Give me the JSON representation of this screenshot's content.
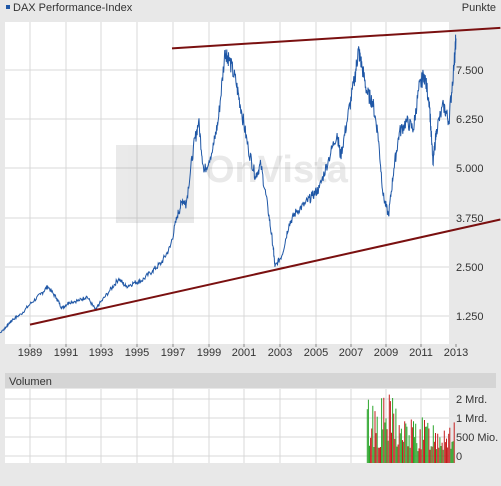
{
  "title": "DAX Performance-Index",
  "unit_label": "Punkte",
  "watermark": "OnVista",
  "volume_title": "Volumen",
  "colors": {
    "background": "#e8e8e8",
    "plot_bg": "#ffffff",
    "grid": "#d8d8d8",
    "price_line": "#1f57a6",
    "trend_line": "#7a1010",
    "vol_up": "#2aa52a",
    "vol_down": "#c41e1e",
    "legend_square": "#1f57a6"
  },
  "chart_data": [
    {
      "type": "line",
      "title": "DAX Performance-Index",
      "ylabel": "Punkte",
      "x_ticks": [
        "1989",
        "1991",
        "1993",
        "1995",
        "1997",
        "1999",
        "2001",
        "2003",
        "2005",
        "2007",
        "2009",
        "2011",
        "2013"
      ],
      "y_ticks": [
        "1.250",
        "2.500",
        "3.750",
        "5.000",
        "6.250",
        "7.500"
      ],
      "xlim": [
        1987.0,
        2013.0
      ],
      "ylim": [
        0,
        8900
      ],
      "grid": true,
      "series": [
        {
          "x": [
            1987.0,
            1987.5,
            1987.8,
            1988.0,
            1988.5,
            1989.0,
            1989.6,
            1990.0,
            1990.5,
            1990.8,
            1991.2,
            1991.8,
            1992.2,
            1992.7,
            1992.9,
            1993.5,
            1994.0,
            1994.4,
            1994.9,
            1995.3,
            1995.9,
            1996.4,
            1996.9,
            1997.3,
            1997.6,
            1997.8,
            1998.2,
            1998.5,
            1998.8,
            1999.3,
            1999.6,
            2000.0,
            2000.2,
            2000.6,
            2000.9,
            2001.3,
            2001.7,
            2002.0,
            2002.4,
            2002.7,
            2002.8,
            2003.2,
            2003.6,
            2004.0,
            2004.5,
            2004.9,
            2005.3,
            2005.8,
            2006.3,
            2006.5,
            2006.9,
            2007.3,
            2007.5,
            2007.7,
            2008.0,
            2008.3,
            2008.6,
            2008.9,
            2009.2,
            2009.5,
            2009.8,
            2010.2,
            2010.6,
            2010.9,
            2011.2,
            2011.5,
            2011.7,
            2011.9,
            2012.3,
            2012.6,
            2012.9,
            2013.0
          ],
          "y": [
            680,
            900,
            1050,
            1150,
            1300,
            1550,
            1800,
            2000,
            1700,
            1450,
            1600,
            1650,
            1750,
            1400,
            1550,
            1900,
            2200,
            2000,
            2100,
            2150,
            2400,
            2600,
            3000,
            3800,
            4200,
            4100,
            5500,
            6200,
            4900,
            5500,
            6200,
            8000,
            7800,
            7200,
            6500,
            5500,
            4800,
            5100,
            4000,
            3000,
            2500,
            2800,
            3600,
            3900,
            4100,
            4300,
            4500,
            5200,
            5900,
            5300,
            6300,
            7300,
            8000,
            7600,
            6900,
            6700,
            5900,
            4300,
            3800,
            5000,
            5900,
            6200,
            6000,
            7000,
            7400,
            6700,
            5100,
            6000,
            6600,
            6200,
            7700,
            8300
          ]
        }
      ],
      "annotations": [
        {
          "type": "trendline",
          "label": "resistance",
          "x": [
            1997.0,
            2013.0
          ],
          "y": [
            8050,
            8500
          ]
        },
        {
          "type": "trendline",
          "label": "support",
          "x": [
            1989.0,
            2013.0
          ],
          "y": [
            1030,
            3450
          ]
        }
      ]
    },
    {
      "type": "bar",
      "title": "Volumen",
      "y_ticks": [
        "0",
        "500 Mio.",
        "1 Mrd.",
        "2 Mrd."
      ],
      "ylim": [
        0,
        2000
      ],
      "note": "daily bars present only from 2008 onward, red = down day, green = up day",
      "bars_window": [
        2008.0,
        2012.9
      ]
    }
  ]
}
